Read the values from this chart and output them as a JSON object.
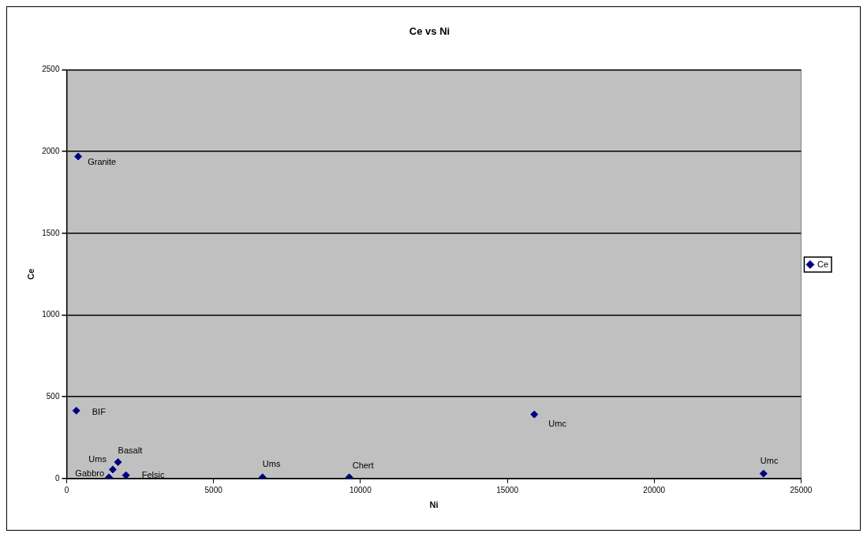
{
  "chart_data": {
    "type": "scatter",
    "title": "Ce vs Ni",
    "xlabel": "Ni",
    "ylabel": "Ce",
    "x": [
      395,
      330,
      1570,
      1750,
      1440,
      2020,
      6670,
      9620,
      15920,
      23720
    ],
    "series": [
      {
        "name": "Ce",
        "color": "#000080",
        "values": [
          1970,
          415,
          55,
          100,
          7,
          20,
          7,
          7,
          392,
          30
        ]
      }
    ],
    "annotations": [
      {
        "text": "Granite",
        "x": 395,
        "y": 1970
      },
      {
        "text": "BIF",
        "x": 330,
        "y": 415
      },
      {
        "text": "Ums",
        "x": 1570,
        "y": 55
      },
      {
        "text": "Basalt",
        "x": 1750,
        "y": 100
      },
      {
        "text": "Gabbro",
        "x": 1440,
        "y": 7
      },
      {
        "text": "Felsic",
        "x": 2020,
        "y": 20
      },
      {
        "text": "Ums",
        "x": 6670,
        "y": 7
      },
      {
        "text": "Chert",
        "x": 9620,
        "y": 7
      },
      {
        "text": "Umc",
        "x": 15920,
        "y": 392
      },
      {
        "text": "Umc",
        "x": 23720,
        "y": 30
      }
    ],
    "xlim": [
      0,
      25000
    ],
    "xticks": [
      0,
      5000,
      10000,
      15000,
      20000,
      25000
    ],
    "ylim": [
      0,
      2500
    ],
    "yticks": [
      0,
      500,
      1000,
      1500,
      2000,
      2500
    ],
    "grid": "y",
    "legend": "right",
    "marker": "diamond"
  }
}
